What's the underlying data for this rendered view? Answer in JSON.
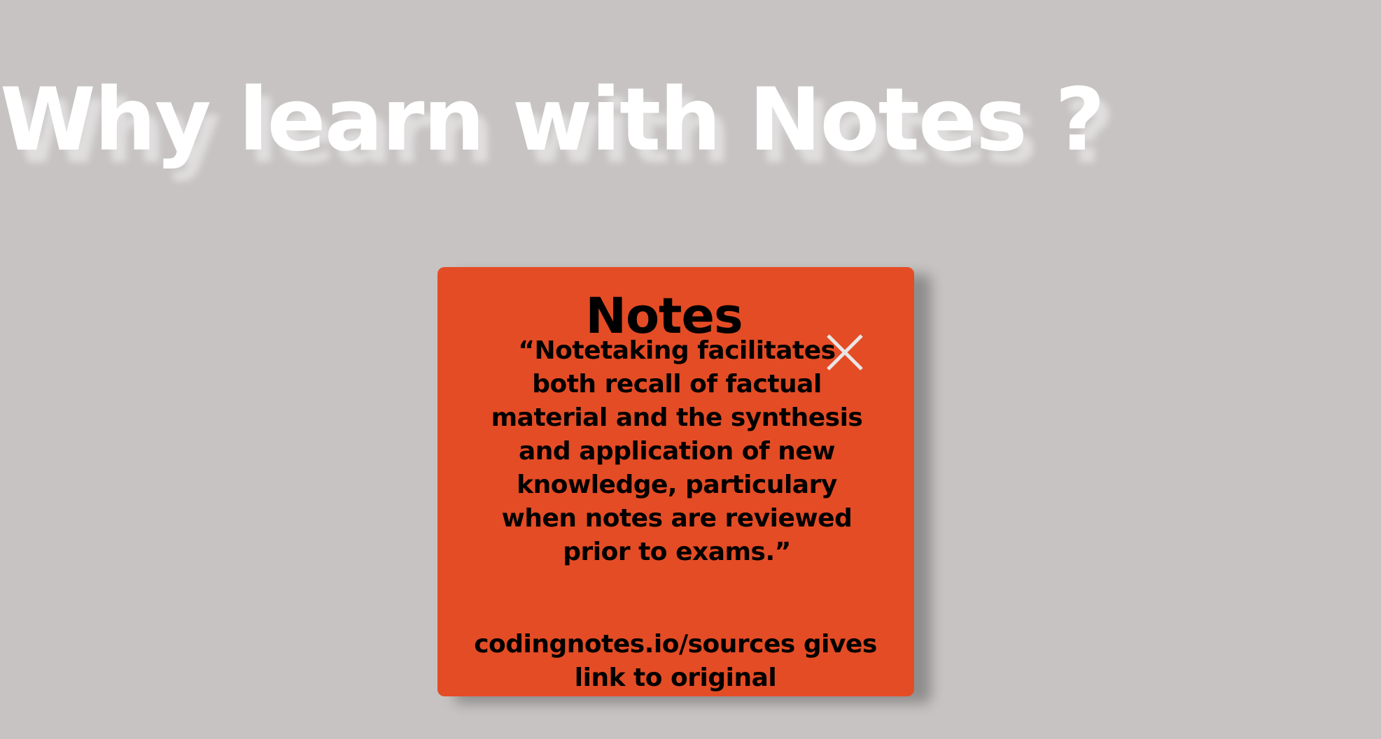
{
  "page": {
    "headline": "Why learn with Notes ?"
  },
  "modal": {
    "title": "Notes",
    "quote": "“Notetaking facilitates both recall of factual material and the synthesis and application of new knowledge, particulary when notes are reviewed prior to exams.”",
    "source_text": "codingnotes.io/sources gives link to original",
    "close_icon": "close-x-icon"
  },
  "colors": {
    "background": "#c6c3c2",
    "card": "#e44c25",
    "headline": "#ffffff",
    "text": "#000000",
    "close_icon": "#e9e6e5"
  }
}
